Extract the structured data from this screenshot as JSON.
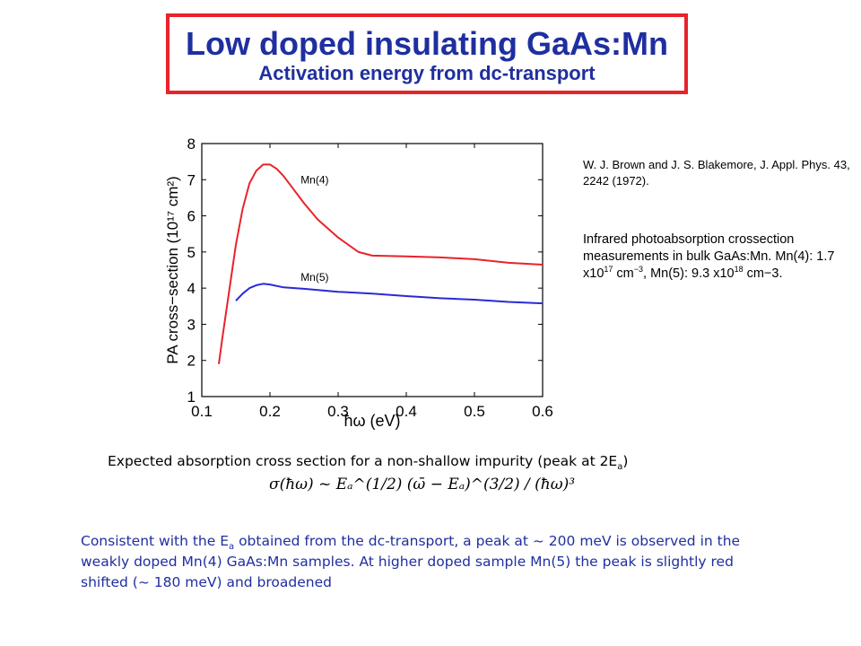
{
  "header": {
    "title": "Low doped insulating GaAs:Mn",
    "subtitle": "Activation energy from dc-transport"
  },
  "reference": "W. J. Brown and J. S. Blakemore, J. Appl. Phys. 43, 2242 (1972).",
  "description": {
    "text1": "Infrared photoabsorption crossection measurements in bulk GaAs:Mn. Mn(4): 1.7 x10",
    "exp1": "17",
    "text2": " cm",
    "exp2": "−3",
    "text3": ", Mn(5): 9.3 x10",
    "exp3": "18",
    "text4": " cm−3."
  },
  "caption": {
    "text": "Expected absorption cross section for a non-shallow impurity (peak at 2E",
    "sub": "a",
    "close": ")"
  },
  "formula": "σ(ħω) ~ Eₐ^(1/2) (ω̄ − Eₐ)^(3/2) / (ħω)³",
  "conclusion": {
    "part1": "Consistent with the E",
    "sub": "a",
    "part2": " obtained from the dc-transport, a peak at ~  200 meV is observed in the weakly doped Mn(4) GaAs:Mn samples. At higher doped sample Mn(5) the peak is slightly red shifted (~  180 meV) and broadened"
  },
  "colors": {
    "title": "#1f2f9f",
    "border": "#e8232a",
    "mn4": "#e8232a",
    "mn5": "#2a2ad6"
  },
  "chart_data": {
    "type": "line",
    "xlabel": "ħω (eV)",
    "ylabel": "PA cross−section   (10¹⁷ cm²)",
    "xlim": [
      0.1,
      0.6
    ],
    "ylim": [
      1,
      8
    ],
    "xticks": [
      0.1,
      0.2,
      0.3,
      0.4,
      0.5,
      0.6
    ],
    "yticks": [
      1,
      2,
      3,
      4,
      5,
      6,
      7,
      8
    ],
    "xtick_labels": [
      "0.1",
      "0.2",
      "0.3",
      "0.4",
      "0.5",
      "0.6"
    ],
    "ytick_labels": [
      "1",
      "2",
      "3",
      "4",
      "5",
      "6",
      "7",
      "8"
    ],
    "series": [
      {
        "name": "Mn(4)",
        "color": "#e8232a",
        "x": [
          0.125,
          0.13,
          0.14,
          0.15,
          0.16,
          0.17,
          0.18,
          0.19,
          0.2,
          0.21,
          0.22,
          0.23,
          0.25,
          0.27,
          0.3,
          0.33,
          0.35,
          0.4,
          0.45,
          0.5,
          0.55,
          0.6
        ],
        "y": [
          1.9,
          2.6,
          3.9,
          5.2,
          6.2,
          6.9,
          7.25,
          7.42,
          7.42,
          7.3,
          7.1,
          6.85,
          6.35,
          5.9,
          5.4,
          5.0,
          4.9,
          4.88,
          4.85,
          4.8,
          4.7,
          4.65
        ]
      },
      {
        "name": "Mn(5)",
        "color": "#2a2ad6",
        "x": [
          0.15,
          0.16,
          0.17,
          0.18,
          0.19,
          0.2,
          0.22,
          0.25,
          0.3,
          0.35,
          0.4,
          0.45,
          0.5,
          0.55,
          0.6
        ],
        "y": [
          3.65,
          3.85,
          4.0,
          4.08,
          4.12,
          4.1,
          4.02,
          3.98,
          3.9,
          3.85,
          3.78,
          3.72,
          3.68,
          3.62,
          3.58
        ]
      }
    ],
    "annotations": [
      {
        "text": "Mn(4)",
        "x": 0.245,
        "y": 6.9
      },
      {
        "text": "Mn(5)",
        "x": 0.245,
        "y": 4.2
      }
    ]
  }
}
